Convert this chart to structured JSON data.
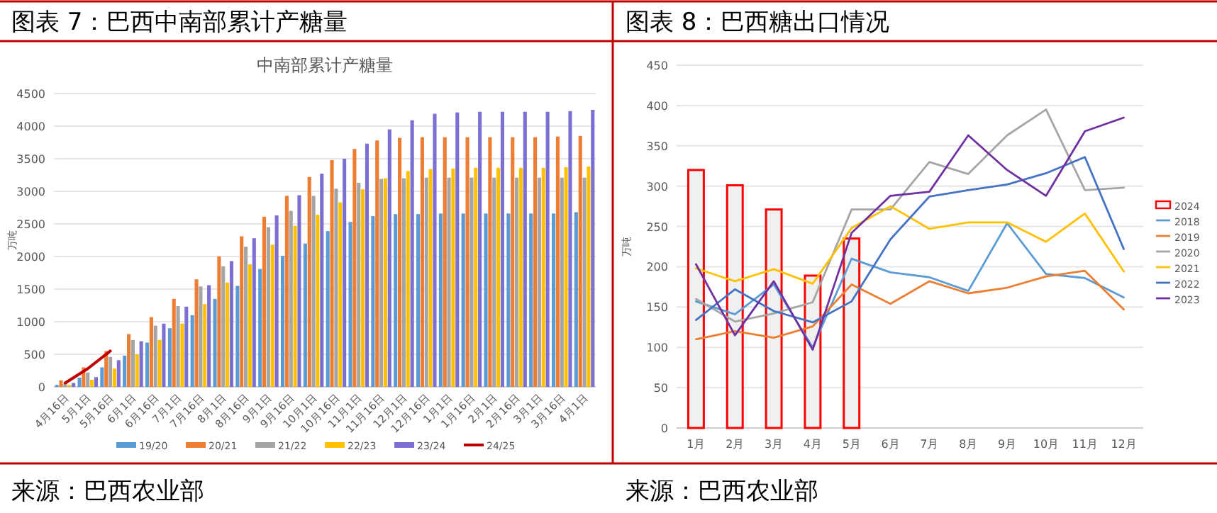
{
  "chart_data": [
    {
      "type": "bar",
      "title": "图表 7：巴西中南部累计产糖量",
      "subtitle": "中南部累计产糖量",
      "ylabel": "万吨",
      "categories": [
        "4月16日",
        "5月1日",
        "5月16日",
        "6月1日",
        "6月16日",
        "7月1日",
        "7月16日",
        "8月1日",
        "8月16日",
        "9月1日",
        "9月16日",
        "10月1日",
        "10月16日",
        "11月1日",
        "11月16日",
        "12月1日",
        "12月16日",
        "1月1日",
        "1月16日",
        "2月1日",
        "2月16日",
        "3月1日",
        "3月16日",
        "4月1日"
      ],
      "series": [
        {
          "name": "19/20",
          "color": "#5b9bd5",
          "values": [
            30,
            140,
            300,
            480,
            680,
            900,
            1100,
            1350,
            1550,
            1810,
            2010,
            2200,
            2390,
            2530,
            2620,
            2650,
            2650,
            2660,
            2660,
            2660,
            2660,
            2660,
            2660,
            2680
          ]
        },
        {
          "name": "20/21",
          "color": "#ed7d31",
          "values": [
            100,
            300,
            550,
            810,
            1070,
            1350,
            1650,
            2000,
            2310,
            2610,
            2930,
            3220,
            3480,
            3650,
            3780,
            3820,
            3830,
            3830,
            3830,
            3830,
            3830,
            3830,
            3840,
            3850
          ]
        },
        {
          "name": "21/22",
          "color": "#a5a5a5",
          "values": [
            60,
            220,
            460,
            720,
            940,
            1240,
            1540,
            1850,
            2150,
            2450,
            2700,
            2930,
            3040,
            3130,
            3190,
            3200,
            3210,
            3210,
            3210,
            3210,
            3210,
            3210,
            3210,
            3210
          ]
        },
        {
          "name": "22/23",
          "color": "#ffc000",
          "values": [
            30,
            110,
            280,
            500,
            720,
            970,
            1270,
            1600,
            1880,
            2180,
            2470,
            2640,
            2830,
            3030,
            3200,
            3310,
            3340,
            3350,
            3360,
            3360,
            3360,
            3360,
            3370,
            3380
          ]
        },
        {
          "name": "23/24",
          "color": "#7b6fd3",
          "values": [
            60,
            150,
            410,
            700,
            970,
            1230,
            1560,
            1930,
            2280,
            2630,
            2940,
            3270,
            3500,
            3730,
            3950,
            4090,
            4190,
            4210,
            4220,
            4220,
            4220,
            4220,
            4230,
            4250
          ]
        },
        {
          "name": "24/25",
          "type": "line",
          "color": "#c00000",
          "values": [
            60,
            280,
            550,
            null,
            null,
            null,
            null,
            null,
            null,
            null,
            null,
            null,
            null,
            null,
            null,
            null,
            null,
            null,
            null,
            null,
            null,
            null,
            null,
            null
          ]
        }
      ],
      "ylim": [
        0,
        4500
      ],
      "yticks": [
        0,
        500,
        1000,
        1500,
        2000,
        2500,
        3000,
        3500,
        4000,
        4500
      ],
      "grid": "y",
      "legend": "bottom",
      "annotations": [
        "来源：巴西农业部"
      ]
    },
    {
      "type": "line",
      "title": "图表 8：巴西糖出口情况",
      "ylabel": "万吨",
      "categories": [
        "1月",
        "2月",
        "3月",
        "4月",
        "5月",
        "6月",
        "7月",
        "8月",
        "9月",
        "10月",
        "11月",
        "12月"
      ],
      "series": [
        {
          "name": "2024",
          "type": "bar",
          "color": "#ff0000",
          "values": [
            320,
            301,
            271,
            189,
            235,
            null,
            null,
            null,
            null,
            null,
            null,
            null
          ]
        },
        {
          "name": "2018",
          "color": "#5b9bd5",
          "values": [
            157,
            141,
            178,
            100,
            210,
            193,
            187,
            170,
            254,
            191,
            186,
            162
          ]
        },
        {
          "name": "2019",
          "color": "#ed7d31",
          "values": [
            110,
            120,
            112,
            126,
            178,
            154,
            182,
            167,
            174,
            188,
            195,
            147
          ]
        },
        {
          "name": "2020",
          "color": "#a5a5a5",
          "values": [
            160,
            132,
            142,
            156,
            271,
            271,
            330,
            315,
            363,
            395,
            295,
            298
          ]
        },
        {
          "name": "2021",
          "color": "#ffc000",
          "values": [
            198,
            182,
            197,
            179,
            248,
            275,
            247,
            255,
            255,
            231,
            266,
            194
          ]
        },
        {
          "name": "2022",
          "color": "#4472c4",
          "values": [
            134,
            172,
            145,
            131,
            157,
            234,
            287,
            295,
            302,
            316,
            336,
            222
          ]
        },
        {
          "name": "2023",
          "color": "#7030a0",
          "values": [
            203,
            115,
            182,
            97,
            242,
            288,
            293,
            363,
            320,
            288,
            368,
            385
          ]
        }
      ],
      "ylim": [
        0,
        450
      ],
      "yticks": [
        0,
        50,
        100,
        150,
        200,
        250,
        300,
        350,
        400,
        450
      ],
      "grid": "y",
      "legend": "right",
      "annotations": [
        "来源：巴西农业部"
      ]
    }
  ]
}
